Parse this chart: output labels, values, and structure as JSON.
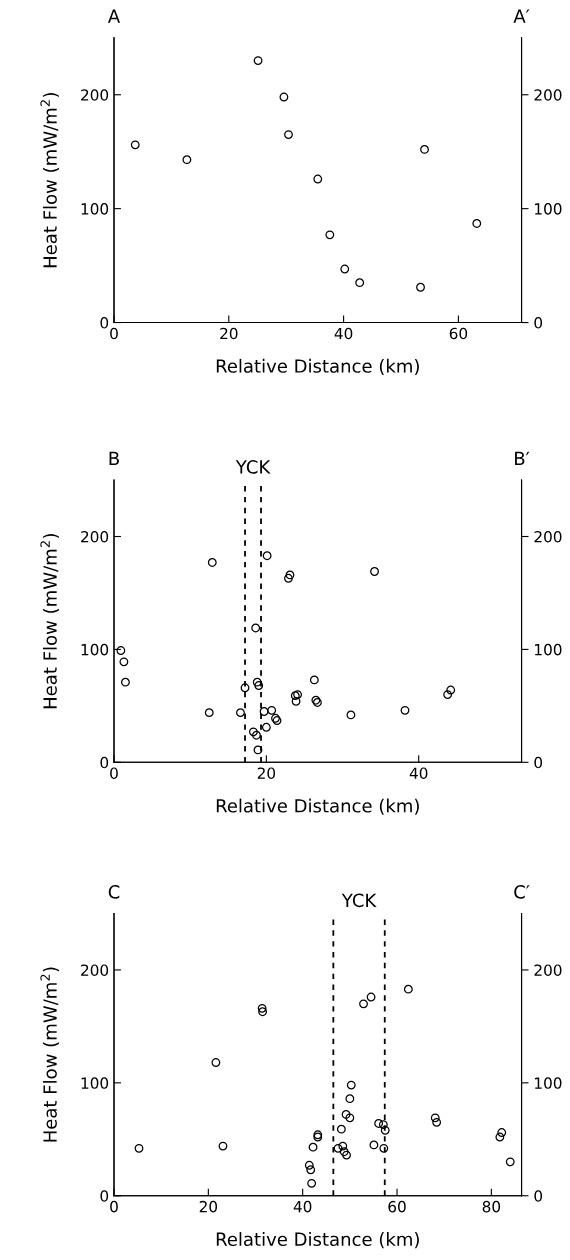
{
  "chart_data": [
    {
      "type": "scatter",
      "xlabel": "Relative Distance (km)",
      "ylabel": "Heat Flow (mW/m$^{2}$)",
      "annotations": [
        "A",
        "A′"
      ],
      "marker": "circle",
      "grid": false,
      "xlim": [
        0,
        71
      ],
      "xticks": [
        0,
        20,
        40,
        60
      ],
      "ylim": [
        0,
        250
      ],
      "yticks": [
        0,
        100,
        200
      ],
      "y2lim": [
        0,
        250
      ],
      "y2ticks": [
        0,
        100,
        200
      ],
      "series": [
        {
          "color": "#000000",
          "x": [
            3.7,
            12.7,
            25.1,
            29.6,
            30.4,
            35.5,
            37.6,
            40.2,
            42.8,
            53.4,
            54.1,
            63.2
          ],
          "values": [
            156,
            143,
            230,
            198,
            165,
            126,
            77,
            47,
            35,
            31,
            152,
            87
          ]
        }
      ]
    },
    {
      "type": "scatter",
      "xlabel": "Relative Distance (km)",
      "ylabel": "Heat Flow (mW/m$^{2}$)",
      "annotations": [
        "B",
        "B′",
        "YCK"
      ],
      "marker": "circle",
      "grid": false,
      "xlim": [
        0,
        53.5
      ],
      "xticks": [
        0,
        20,
        40
      ],
      "ylim": [
        0,
        250
      ],
      "yticks": [
        0,
        100,
        200
      ],
      "y2lim": [
        0,
        250
      ],
      "y2ticks": [
        0,
        100,
        200
      ],
      "ref_lines": [
        {
          "axis": "x",
          "value": 17.2,
          "color": "#000000",
          "line_style": "dashed"
        },
        {
          "axis": "x",
          "value": 19.3,
          "color": "#000000",
          "line_style": "dashed"
        }
      ],
      "series": [
        {
          "color": "#000000",
          "x": [
            0.9,
            1.3,
            1.5,
            12.9,
            12.5,
            16.6,
            17.2,
            18.6,
            18.8,
            19.0,
            18.3,
            18.7,
            18.9,
            20.1,
            19.7,
            20.0,
            20.7,
            21.2,
            21.4,
            22.9,
            23.1,
            23.8,
            24.1,
            23.9,
            26.3,
            26.5,
            26.7,
            31.1,
            34.2,
            38.2,
            43.8,
            44.2
          ],
          "values": [
            99,
            89,
            71,
            177,
            44,
            44,
            66,
            119,
            71,
            68,
            27,
            24,
            11,
            183,
            45,
            31,
            46,
            39,
            37,
            163,
            166,
            59,
            60,
            54,
            73,
            55,
            53,
            42,
            169,
            46,
            60,
            64
          ]
        }
      ]
    },
    {
      "type": "scatter",
      "xlabel": "Relative Distance (km)",
      "ylabel": "Heat Flow (mW/m$^{2}$)",
      "annotations": [
        "C",
        "C′",
        "YCK"
      ],
      "marker": "circle",
      "grid": false,
      "xlim": [
        0,
        86.4
      ],
      "xticks": [
        0,
        20,
        40,
        60,
        80
      ],
      "ylim": [
        0,
        250
      ],
      "yticks": [
        0,
        100,
        200
      ],
      "y2lim": [
        0,
        250
      ],
      "y2ticks": [
        0,
        100,
        200
      ],
      "ref_lines": [
        {
          "axis": "x",
          "value": 46.5,
          "color": "#000000",
          "line_style": "dashed"
        },
        {
          "axis": "x",
          "value": 57.4,
          "color": "#000000",
          "line_style": "dashed"
        }
      ],
      "series": [
        {
          "color": "#000000",
          "x": [
            5.3,
            21.6,
            23.1,
            31.4,
            31.5,
            41.4,
            41.7,
            41.9,
            42.2,
            43.2,
            43.2,
            48.2,
            47.5,
            48.5,
            48.8,
            49.3,
            49.2,
            50.0,
            50.0,
            50.3,
            52.9,
            54.5,
            55.1,
            56.1,
            57.1,
            57.5,
            57.2,
            62.4,
            68.1,
            68.4,
            81.8,
            82.2,
            84.0
          ],
          "values": [
            42,
            118,
            44,
            166,
            163,
            27,
            23,
            11,
            43,
            54,
            52,
            59,
            42,
            44,
            39,
            36,
            72,
            69,
            86,
            98,
            170,
            176,
            45,
            64,
            63,
            58,
            42,
            183,
            69,
            65,
            52,
            56,
            30
          ]
        }
      ]
    }
  ]
}
